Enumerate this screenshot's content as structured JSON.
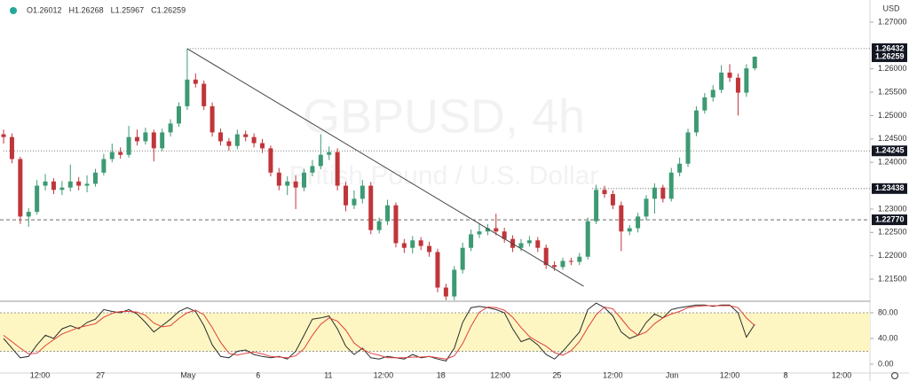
{
  "chart_data": [
    {
      "type": "candlestick",
      "header": [
        "O1.26012",
        "H1.26268",
        "L1.25967",
        "C1.26259"
      ],
      "watermark_title": "GBPUSD, 4h",
      "watermark_subtitle": "British Pound / U.S. Dollar",
      "currency": "USD",
      "up_color": "#3d9a72",
      "down_color": "#c0353a",
      "open": [
        1.246,
        1.2454,
        1.2407,
        1.2284,
        1.2294,
        1.235,
        1.2359,
        1.2341,
        1.2346,
        1.2359,
        1.235,
        1.2354,
        1.2378,
        1.2407,
        1.2422,
        1.2416,
        1.2454,
        1.2445,
        1.2464,
        1.243,
        1.2464,
        1.2483,
        1.252,
        1.2577,
        1.2568,
        1.252,
        1.2464,
        1.2445,
        1.2435,
        1.246,
        1.2454,
        1.2441,
        1.243,
        1.2378,
        1.235,
        1.2359,
        1.2346,
        1.2378,
        1.2392,
        1.2416,
        1.2422,
        1.235,
        1.2308,
        1.2322,
        1.235,
        1.2255,
        1.2274,
        1.2308,
        1.2227,
        1.2217,
        1.2233,
        1.2221,
        1.2208,
        1.2132,
        1.2113,
        1.217,
        1.2217,
        1.2246,
        1.2252,
        1.2259,
        1.2252,
        1.2236,
        1.2217,
        1.2227,
        1.2233,
        1.2217,
        1.218,
        1.2176,
        1.2189,
        1.2187,
        1.2198,
        1.2274,
        1.2341,
        1.2332,
        1.2308,
        1.2252,
        1.2259,
        1.2284,
        1.2322,
        1.2346,
        1.2322,
        1.2378,
        1.2397,
        1.2464,
        1.2511,
        1.2539,
        1.2555,
        1.2592,
        1.2581,
        1.2549,
        1.26012
      ],
      "high": [
        1.247,
        1.2462,
        1.2412,
        1.2302,
        1.2362,
        1.2375,
        1.2366,
        1.236,
        1.2395,
        1.2368,
        1.2372,
        1.2386,
        1.2418,
        1.244,
        1.2432,
        1.2478,
        1.247,
        1.2474,
        1.247,
        1.2472,
        1.2492,
        1.2528,
        1.26432,
        1.259,
        1.2575,
        1.2528,
        1.2472,
        1.2452,
        1.247,
        1.2468,
        1.2462,
        1.245,
        1.2436,
        1.2388,
        1.237,
        1.2372,
        1.2386,
        1.2405,
        1.246,
        1.2434,
        1.243,
        1.2358,
        1.234,
        1.2362,
        1.2358,
        1.2282,
        1.232,
        1.2314,
        1.2236,
        1.2242,
        1.224,
        1.223,
        1.2215,
        1.214,
        1.2178,
        1.2228,
        1.2256,
        1.227,
        1.2268,
        1.229,
        1.226,
        1.2244,
        1.2236,
        1.2242,
        1.224,
        1.2224,
        1.2188,
        1.2196,
        1.2196,
        1.2206,
        1.2282,
        1.2352,
        1.235,
        1.234,
        1.2316,
        1.2266,
        1.2292,
        1.233,
        1.2355,
        1.2352,
        1.2388,
        1.241,
        1.2472,
        1.252,
        1.2548,
        1.2565,
        1.2608,
        1.261,
        1.259,
        1.261,
        1.26268
      ],
      "low": [
        1.244,
        1.2398,
        1.2268,
        1.2262,
        1.2288,
        1.234,
        1.2332,
        1.233,
        1.2338,
        1.234,
        1.2336,
        1.2348,
        1.2372,
        1.24,
        1.2408,
        1.241,
        1.2436,
        1.2438,
        1.2402,
        1.2424,
        1.2455,
        1.2476,
        1.2512,
        1.256,
        1.2512,
        1.2455,
        1.2436,
        1.2425,
        1.2428,
        1.2445,
        1.2432,
        1.242,
        1.237,
        1.234,
        1.233,
        1.23,
        1.2338,
        1.237,
        1.2385,
        1.2405,
        1.234,
        1.2295,
        1.23,
        1.2312,
        1.2246,
        1.2248,
        1.2266,
        1.2218,
        1.2206,
        1.2205,
        1.2212,
        1.2198,
        1.2122,
        1.2105,
        1.2105,
        1.2162,
        1.221,
        1.2238,
        1.2244,
        1.2244,
        1.2228,
        1.2208,
        1.221,
        1.222,
        1.2208,
        1.2172,
        1.2168,
        1.217,
        1.218,
        1.218,
        1.2192,
        1.2268,
        1.2324,
        1.23,
        1.221,
        1.2244,
        1.225,
        1.2276,
        1.229,
        1.2314,
        1.2316,
        1.237,
        1.239,
        1.2456,
        1.2504,
        1.253,
        1.2548,
        1.2572,
        1.25,
        1.254,
        1.25967
      ],
      "close": [
        1.2454,
        1.2407,
        1.2284,
        1.2294,
        1.235,
        1.2359,
        1.2341,
        1.2346,
        1.2359,
        1.235,
        1.2354,
        1.2378,
        1.2407,
        1.2422,
        1.2416,
        1.2454,
        1.2445,
        1.2464,
        1.243,
        1.2464,
        1.2483,
        1.252,
        1.2577,
        1.2568,
        1.252,
        1.2464,
        1.2445,
        1.2435,
        1.246,
        1.2454,
        1.2441,
        1.243,
        1.2378,
        1.235,
        1.2359,
        1.2346,
        1.2378,
        1.2392,
        1.2416,
        1.2422,
        1.235,
        1.2308,
        1.2322,
        1.235,
        1.2255,
        1.2274,
        1.2308,
        1.2227,
        1.2217,
        1.2233,
        1.2221,
        1.2208,
        1.2132,
        1.2113,
        1.217,
        1.2217,
        1.2246,
        1.2252,
        1.2259,
        1.2252,
        1.2236,
        1.2217,
        1.2227,
        1.2233,
        1.2217,
        1.218,
        1.2176,
        1.2189,
        1.2187,
        1.2198,
        1.2274,
        1.2341,
        1.2332,
        1.2308,
        1.2252,
        1.2259,
        1.2284,
        1.2322,
        1.2346,
        1.2322,
        1.2378,
        1.2397,
        1.2464,
        1.2511,
        1.2539,
        1.2555,
        1.2592,
        1.2581,
        1.2549,
        1.2601,
        1.26259
      ],
      "ylim": [
        1.21027,
        1.27473
      ],
      "yticks": [
        {
          "value": 1.27,
          "label": "1.27000"
        },
        {
          "value": 1.26,
          "label": "1.26000"
        },
        {
          "value": 1.255,
          "label": "1.25500"
        },
        {
          "value": 1.25,
          "label": "1.25000"
        },
        {
          "value": 1.245,
          "label": "1.24500"
        },
        {
          "value": 1.24,
          "label": "1.24000"
        },
        {
          "value": 1.23,
          "label": "1.23000"
        },
        {
          "value": 1.225,
          "label": "1.22500"
        },
        {
          "value": 1.22,
          "label": "1.22000"
        },
        {
          "value": 1.215,
          "label": "1.21500"
        }
      ],
      "xlim": [
        -0.43,
        103.8
      ],
      "xticks": [
        {
          "value": 4.36,
          "label": "12:00"
        },
        {
          "value": 11.6,
          "label": "27"
        },
        {
          "value": 22.1,
          "label": "May"
        },
        {
          "value": 30.5,
          "label": "6"
        },
        {
          "value": 38.9,
          "label": "11"
        },
        {
          "value": 45.5,
          "label": "12:00"
        },
        {
          "value": 52.4,
          "label": "18"
        },
        {
          "value": 59.5,
          "label": "12:00"
        },
        {
          "value": 66.3,
          "label": "25"
        },
        {
          "value": 73.0,
          "label": "12:00"
        },
        {
          "value": 80.1,
          "label": "Jun"
        },
        {
          "value": 87.0,
          "label": "12:00"
        },
        {
          "value": 93.7,
          "label": "8"
        },
        {
          "value": 100.4,
          "label": "12:00"
        }
      ],
      "grid": false,
      "levels": [
        {
          "value": 1.26432,
          "style": "dotted",
          "x_start": 22
        },
        {
          "value": 1.26259,
          "style": "none"
        },
        {
          "value": 1.24245,
          "style": "dotted",
          "x_start": 0
        },
        {
          "value": 1.23438,
          "style": "dotted",
          "x_start": 70.5
        },
        {
          "value": 1.2277,
          "label": "1.22770",
          "style": "dashed",
          "x_start": -0.43
        }
      ],
      "trend_line": {
        "x": [
          22,
          69.5
        ],
        "y": [
          1.26432,
          1.21348
        ],
        "color": "#444444"
      }
    },
    {
      "type": "line",
      "ylim": [
        -12.4,
        97.9
      ],
      "yticks": [
        {
          "value": 80,
          "label": "80.00"
        },
        {
          "value": 40,
          "label": "40.00"
        },
        {
          "value": 0,
          "label": "0.00"
        }
      ],
      "band": [
        20,
        80
      ],
      "band_color": "#fdf6c3",
      "series": [
        {
          "color": "#2b2b2b",
          "values": [
            40,
            25,
            10,
            12,
            30,
            45,
            40,
            55,
            60,
            55,
            65,
            70,
            85,
            82,
            80,
            85,
            78,
            65,
            50,
            60,
            70,
            82,
            88,
            82,
            60,
            30,
            12,
            10,
            20,
            22,
            15,
            12,
            10,
            12,
            8,
            20,
            45,
            70,
            72,
            75,
            55,
            28,
            15,
            25,
            10,
            8,
            12,
            10,
            8,
            15,
            10,
            12,
            8,
            5,
            25,
            65,
            88,
            90,
            88,
            85,
            80,
            55,
            35,
            40,
            30,
            15,
            8,
            20,
            35,
            50,
            85,
            95,
            88,
            75,
            50,
            40,
            45,
            65,
            78,
            72,
            85,
            88,
            90,
            92,
            92,
            90,
            92,
            92,
            80,
            42,
            62
          ]
        },
        {
          "color": "#e0403a",
          "values": [
            45,
            35,
            25,
            16,
            17,
            29,
            38,
            47,
            52,
            57,
            60,
            63,
            73,
            79,
            82,
            82,
            81,
            76,
            64,
            58,
            60,
            71,
            80,
            84,
            77,
            57,
            34,
            17,
            14,
            17,
            19,
            16,
            12,
            11,
            10,
            13,
            24,
            45,
            62,
            72,
            67,
            53,
            33,
            23,
            17,
            14,
            10,
            10,
            10,
            11,
            11,
            12,
            10,
            8,
            13,
            32,
            59,
            81,
            89,
            88,
            84,
            73,
            57,
            43,
            35,
            28,
            18,
            14,
            21,
            35,
            57,
            77,
            89,
            86,
            71,
            55,
            45,
            50,
            63,
            72,
            78,
            82,
            88,
            90,
            91,
            91,
            91,
            91,
            88,
            72,
            60
          ]
        }
      ]
    }
  ]
}
